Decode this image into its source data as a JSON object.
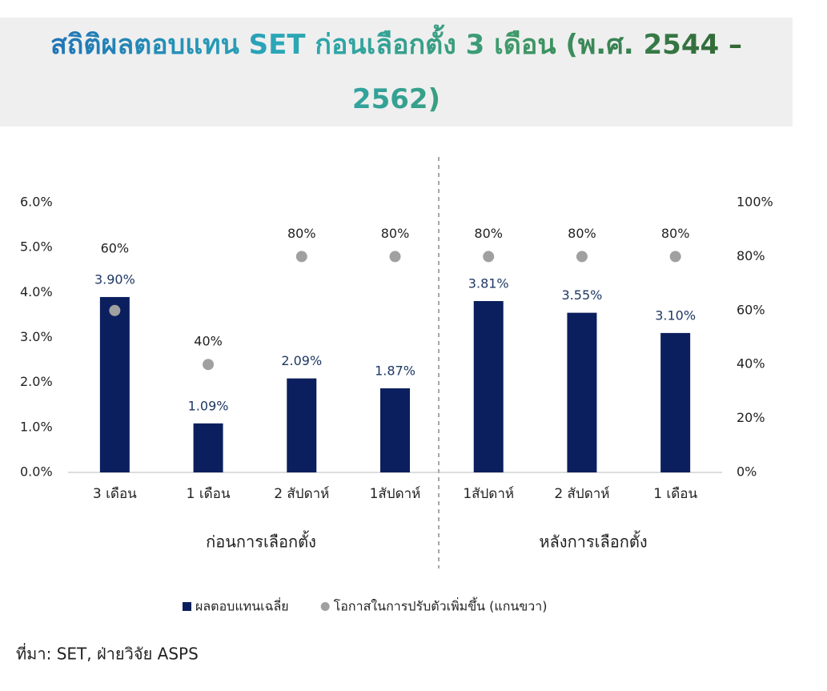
{
  "chart_data": {
    "type": "bar",
    "title": "สถิติผลตอบแทน SET ก่อนเลือกตั้ง 3 เดือน (พ.ศ. 2544 – 2562)",
    "categories": [
      "3 เดือน",
      "1 เดือน",
      "2 สัปดาห์",
      "1สัปดาห์",
      "1สัปดาห์",
      "2 สัปดาห์",
      "1 เดือน"
    ],
    "groups": [
      "ก่อนการเลือกตั้ง",
      "หลังการเลือกตั้ง"
    ],
    "series": [
      {
        "name": "ผลตอบแทนเฉลี่ย",
        "type": "bar",
        "color": "#0b1f5e",
        "values": [
          3.9,
          1.09,
          2.09,
          1.87,
          3.81,
          3.55,
          3.1
        ],
        "value_labels": [
          "3.90%",
          "1.09%",
          "2.09%",
          "1.87%",
          "3.81%",
          "3.55%",
          "3.10%"
        ]
      },
      {
        "name": "โอกาสในการปรับตัวเพิ่มขึ้น (แกนขวา)",
        "type": "scatter",
        "axis": "y2",
        "color": "#a0a0a0",
        "values": [
          60,
          40,
          80,
          80,
          80,
          80,
          80
        ],
        "value_labels": [
          "60%",
          "40%",
          "80%",
          "80%",
          "80%",
          "80%",
          "80%"
        ]
      }
    ],
    "ylim": [
      0,
      6
    ],
    "yticks": [
      {
        "value": 0,
        "label": "0.0%"
      },
      {
        "value": 1,
        "label": "1.0%"
      },
      {
        "value": 2,
        "label": "2.0%"
      },
      {
        "value": 3,
        "label": "3.0%"
      },
      {
        "value": 4,
        "label": "4.0%"
      },
      {
        "value": 5,
        "label": "5.0%"
      },
      {
        "value": 6,
        "label": "6.0%"
      }
    ],
    "y2lim": [
      0,
      100
    ],
    "y2ticks": [
      {
        "value": 0,
        "label": "0%"
      },
      {
        "value": 20,
        "label": "20%"
      },
      {
        "value": 40,
        "label": "40%"
      },
      {
        "value": 60,
        "label": "60%"
      },
      {
        "value": 80,
        "label": "80%"
      },
      {
        "value": 100,
        "label": "100%"
      }
    ],
    "grid": false,
    "legend": "bottom",
    "source": "ที่มา: SET, ฝ่ายวิจัย ASPS"
  }
}
